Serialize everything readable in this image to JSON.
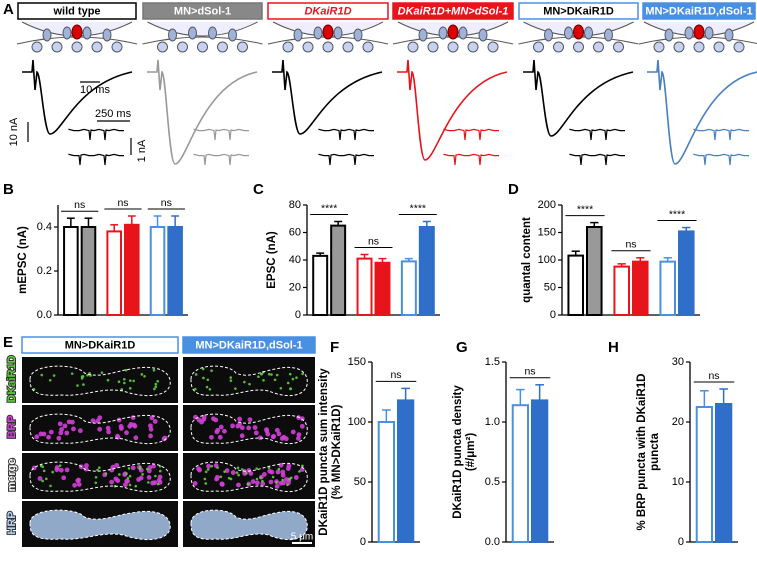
{
  "panel_a": {
    "panel_label": "A",
    "genotypes": [
      "wild type",
      "MN>dSol-1",
      "DKaiR1D",
      "DKaiR1D+MN>dSol-1",
      "MN>DKaiR1D",
      "MN>DKaiR1D,dSol-1"
    ],
    "scale_labels": [
      "10 ms",
      "250 ms",
      "10 nA",
      "1 nA"
    ]
  },
  "panel_e": {
    "panel_label": "E",
    "columns": [
      "MN>DKaiR1D",
      "MN>DKaiR1D,dSol-1"
    ],
    "rows": [
      "DKaiR1D",
      "BRP",
      "merge",
      "HRP"
    ],
    "scale_label": "5 μm"
  },
  "chart_data": [
    {
      "type": "bar",
      "panel_label": "B",
      "ylabel": [
        "mEPSC (nA)"
      ],
      "values": [
        0.4,
        0.4,
        0.38,
        0.41,
        0.4,
        0.4
      ],
      "errors": [
        0.04,
        0.04,
        0.03,
        0.04,
        0.05,
        0.05
      ],
      "edge_colors": [
        "#000000",
        "#000000",
        "#e8141c",
        "#e8141c",
        "#4a90e2",
        "#2f6fc9"
      ],
      "fill_colors": [
        "#ffffff",
        "#999999",
        "#ffffff",
        "#e8141c",
        "#ffffff",
        "#2f6fc9"
      ],
      "annotations": [
        "ns",
        "ns",
        "ns"
      ],
      "ylim": [
        0,
        0.5
      ],
      "yticks": [
        {
          "value": 0,
          "label": "0.0"
        },
        0.2,
        0.4
      ]
    },
    {
      "type": "bar",
      "panel_label": "C",
      "ylabel": [
        "EPSC (nA)"
      ],
      "values": [
        43,
        65,
        41,
        38,
        39,
        64
      ],
      "errors": [
        2,
        3,
        3,
        3,
        2,
        4
      ],
      "edge_colors": [
        "#000000",
        "#000000",
        "#e8141c",
        "#e8141c",
        "#4a90e2",
        "#2f6fc9"
      ],
      "fill_colors": [
        "#ffffff",
        "#999999",
        "#ffffff",
        "#e8141c",
        "#ffffff",
        "#2f6fc9"
      ],
      "annotations": [
        "****",
        "ns",
        "****"
      ],
      "ylim": [
        0,
        80
      ],
      "yticks": [
        0,
        20,
        40,
        60,
        80
      ]
    },
    {
      "type": "bar",
      "panel_label": "D",
      "ylabel": [
        "quantal content"
      ],
      "values": [
        108,
        160,
        88,
        97,
        97,
        152
      ],
      "errors": [
        8,
        8,
        5,
        7,
        7,
        7
      ],
      "edge_colors": [
        "#000000",
        "#000000",
        "#e8141c",
        "#e8141c",
        "#4a90e2",
        "#2f6fc9"
      ],
      "fill_colors": [
        "#ffffff",
        "#999999",
        "#ffffff",
        "#e8141c",
        "#ffffff",
        "#2f6fc9"
      ],
      "annotations": [
        "****",
        "ns",
        "****"
      ],
      "ylim": [
        0,
        200
      ],
      "yticks": [
        0,
        50,
        100,
        150,
        200
      ]
    },
    {
      "type": "bar",
      "panel_label": "F",
      "ylabel": [
        "DKaiR1D puncta sum intensity",
        "(% MN>DKaiR1D)"
      ],
      "values": [
        100,
        118
      ],
      "errors": [
        10,
        10
      ],
      "edge_colors": [
        "#4a90e2",
        "#2f6fc9"
      ],
      "fill_colors": [
        "#ffffff",
        "#2f6fc9"
      ],
      "annotations": [
        "ns"
      ],
      "ylim": [
        0,
        150
      ],
      "yticks": [
        0,
        50,
        100,
        150
      ]
    },
    {
      "type": "bar",
      "panel_label": "G",
      "ylabel": [
        "DKaiR1D puncta density",
        "(#/μm²)"
      ],
      "values": [
        1.14,
        1.18
      ],
      "errors": [
        0.13,
        0.13
      ],
      "edge_colors": [
        "#4a90e2",
        "#2f6fc9"
      ],
      "fill_colors": [
        "#ffffff",
        "#2f6fc9"
      ],
      "annotations": [
        "ns"
      ],
      "ylim": [
        0,
        1.5
      ],
      "yticks": [
        {
          "value": 0,
          "label": "0.0"
        },
        {
          "value": 0.5,
          "label": "0.5"
        },
        {
          "value": 1,
          "label": "1.0"
        },
        1.5
      ]
    },
    {
      "type": "bar",
      "panel_label": "H",
      "ylabel": [
        "% BRP puncta with DKaiR1D",
        "puncta"
      ],
      "values": [
        22.5,
        23
      ],
      "errors": [
        2.7,
        2.5
      ],
      "edge_colors": [
        "#4a90e2",
        "#2f6fc9"
      ],
      "fill_colors": [
        "#ffffff",
        "#2f6fc9"
      ],
      "annotations": [
        "ns"
      ],
      "ylim": [
        0,
        30
      ],
      "yticks": [
        0,
        10,
        20,
        30
      ]
    }
  ]
}
